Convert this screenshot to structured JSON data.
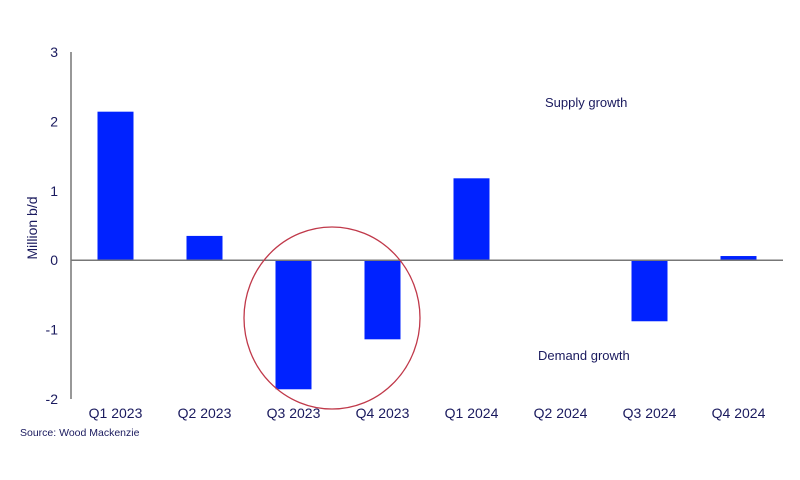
{
  "chart_data": {
    "type": "bar",
    "categories": [
      "Q1 2023",
      "Q2 2023",
      "Q3 2023",
      "Q4 2023",
      "Q1 2024",
      "Q2 2024",
      "Q3 2024",
      "Q4 2024"
    ],
    "values": [
      2.14,
      0.35,
      -1.86,
      -1.14,
      1.18,
      0.0,
      -0.88,
      0.06
    ],
    "title": "",
    "xlabel": "",
    "ylabel": "Million b/d",
    "ylim": [
      -2,
      3
    ],
    "yticks": [
      -2,
      -1,
      0,
      1,
      2,
      3
    ],
    "grid": false,
    "bar_color": "#0022ff",
    "annotations": [
      {
        "text": "Supply growth",
        "position": "upper-right"
      },
      {
        "text": "Demand growth",
        "position": "lower-right"
      }
    ],
    "highlight": {
      "shape": "circle",
      "color": "#c0394a",
      "categories": [
        "Q3 2023",
        "Q4 2023"
      ]
    },
    "source": "Source: Wood Mackenzie"
  }
}
